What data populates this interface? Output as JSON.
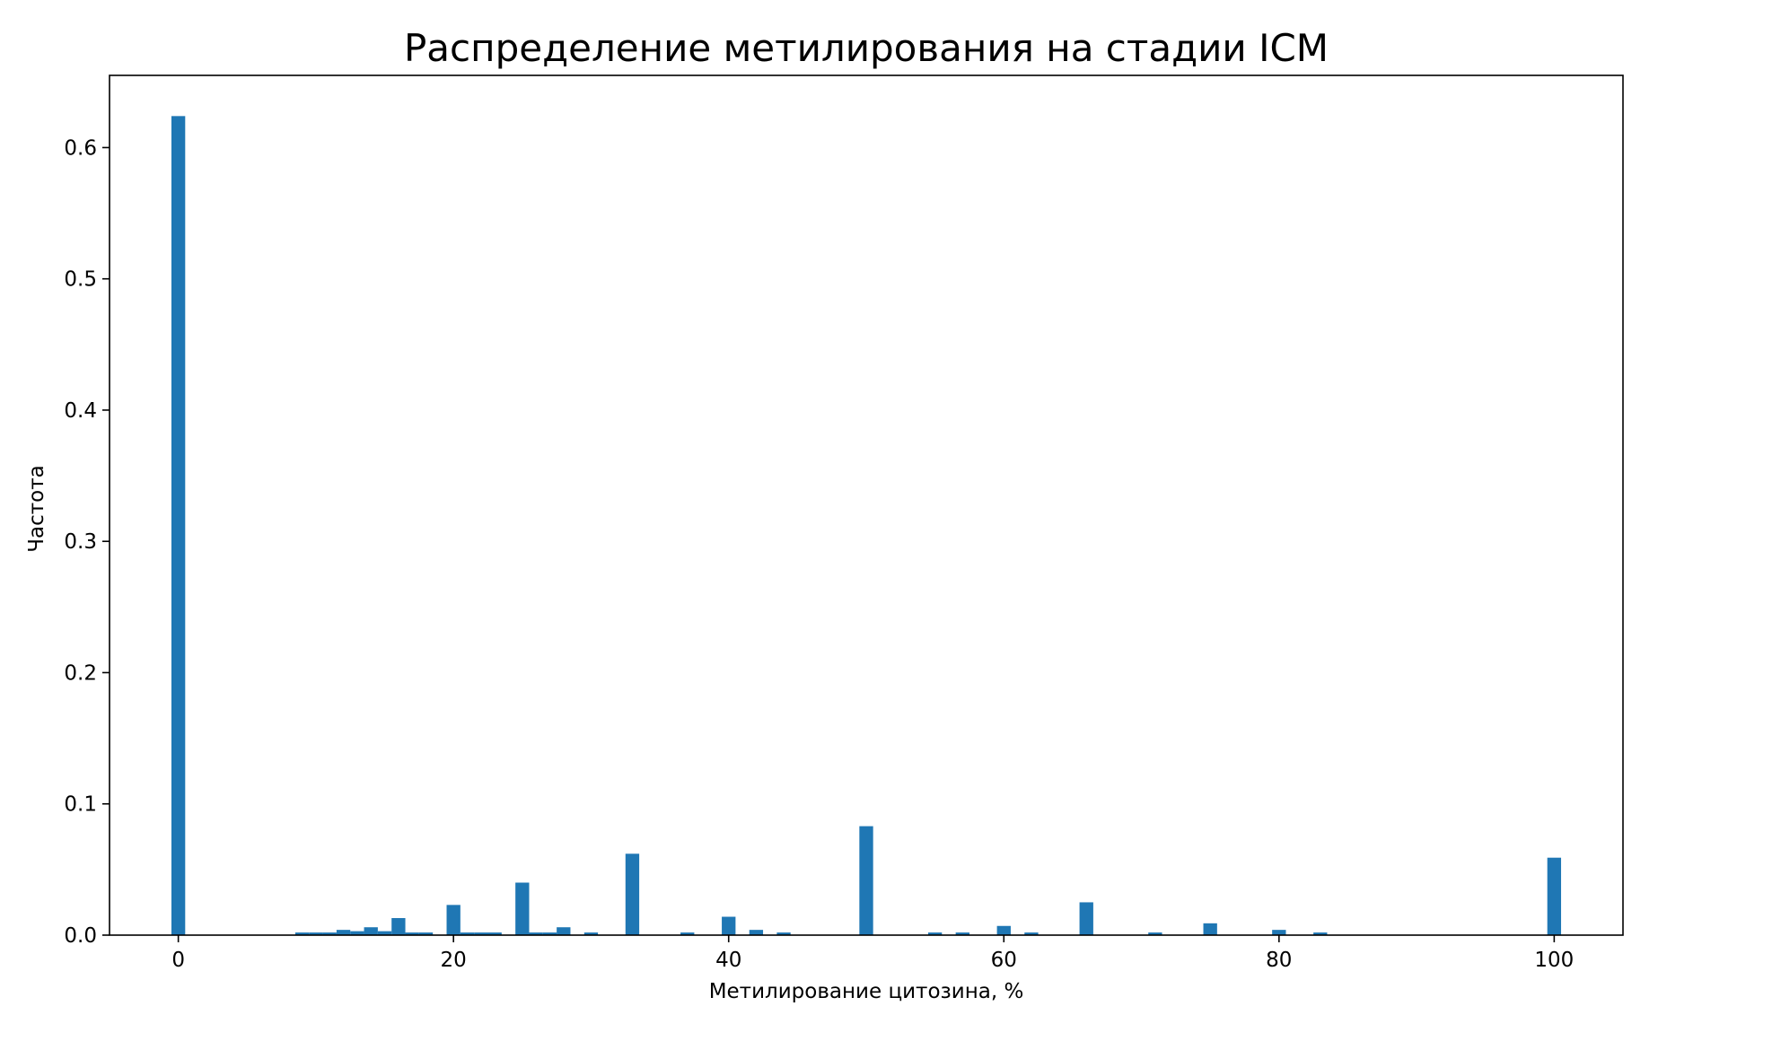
{
  "chart_data": {
    "type": "bar",
    "title": "Распределение метилирования на стадии ICM",
    "xlabel": "Метилирование цитозина, %",
    "ylabel": "Частота",
    "xlim": [
      -5,
      105
    ],
    "ylim": [
      0,
      0.655
    ],
    "xticks": [
      0,
      20,
      40,
      60,
      80,
      100
    ],
    "yticks": [
      0.0,
      0.1,
      0.2,
      0.3,
      0.4,
      0.5,
      0.6
    ],
    "xtick_labels": [
      "0",
      "20",
      "40",
      "60",
      "80",
      "100"
    ],
    "ytick_labels": [
      "0.0",
      "0.1",
      "0.2",
      "0.3",
      "0.4",
      "0.5",
      "0.6"
    ],
    "bar_width": 1,
    "grid": false,
    "color": "#1f77b4",
    "x": [
      0,
      9,
      10,
      11,
      12,
      13,
      14,
      15,
      16,
      17,
      18,
      20,
      21,
      22,
      23,
      25,
      26,
      27,
      28,
      30,
      33,
      37,
      40,
      42,
      44,
      50,
      55,
      57,
      60,
      62,
      66,
      71,
      75,
      80,
      83,
      100
    ],
    "values": [
      0.624,
      0.002,
      0.002,
      0.002,
      0.004,
      0.003,
      0.006,
      0.003,
      0.013,
      0.002,
      0.002,
      0.023,
      0.002,
      0.002,
      0.002,
      0.04,
      0.002,
      0.002,
      0.006,
      0.002,
      0.062,
      0.002,
      0.014,
      0.004,
      0.002,
      0.083,
      0.002,
      0.002,
      0.007,
      0.002,
      0.025,
      0.002,
      0.009,
      0.004,
      0.002,
      0.059
    ]
  }
}
